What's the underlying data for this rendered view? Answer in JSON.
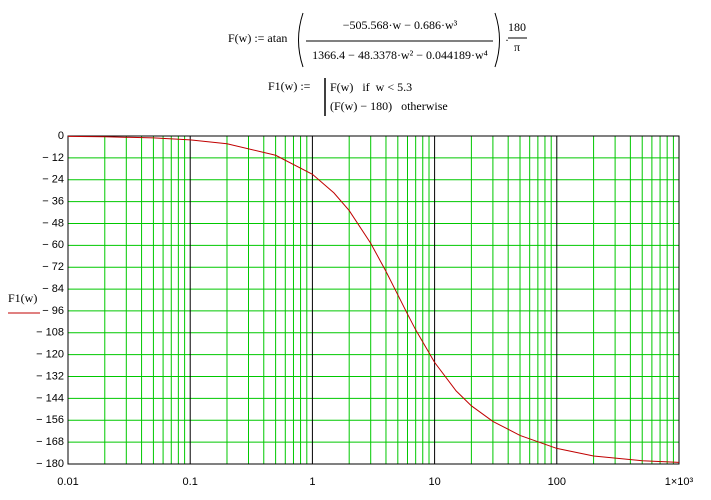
{
  "worksheet": {
    "def_f": "F(w) := atan",
    "numerator": "−505.568·w − 0.686·w³",
    "denominator": "1366.4 − 48.3378·w² − 0.044189·w⁴",
    "factor_num": "180",
    "factor_den": "π",
    "def_f1": "F1(w) :=",
    "case_1": "F(w)   if  w < 5.3",
    "case_2": "(F(w) − 180)   otherwise"
  },
  "chart_data": {
    "type": "line",
    "x": [
      0.01,
      0.02,
      0.05,
      0.1,
      0.2,
      0.5,
      1,
      1.5,
      2,
      3,
      4,
      5,
      6,
      7,
      10,
      15,
      20,
      30,
      50,
      100,
      200,
      500,
      1000
    ],
    "series": [
      {
        "name": "F1(w)",
        "color": "#c00000",
        "values": [
          -0.21,
          -0.42,
          -1.06,
          -2.12,
          -4.24,
          -10.58,
          -21.01,
          -31.21,
          -40.93,
          -58.86,
          -74.28,
          -87.14,
          -97.72,
          -106.36,
          -124.25,
          -139.88,
          -148.08,
          -156.62,
          -164.33,
          -171.45,
          -175.6,
          -178.22,
          -179.11
        ]
      }
    ],
    "xlim": [
      0.01,
      1000
    ],
    "xticks": [
      {
        "value": 0.01,
        "label": "0.01"
      },
      {
        "value": 0.1,
        "label": "0.1"
      },
      1,
      10,
      100,
      {
        "value": 1000,
        "label": "1×10³"
      }
    ],
    "x_log": true,
    "ylim": [
      -180,
      0
    ],
    "yticks": [
      0,
      {
        "value": -12,
        "label": "− 12"
      },
      {
        "value": -24,
        "label": "− 24"
      },
      {
        "value": -36,
        "label": "− 36"
      },
      {
        "value": -48,
        "label": "− 48"
      },
      {
        "value": -60,
        "label": "− 60"
      },
      {
        "value": -72,
        "label": "− 72"
      },
      {
        "value": -84,
        "label": "− 84"
      },
      {
        "value": -96,
        "label": "− 96"
      },
      {
        "value": -108,
        "label": "− 108"
      },
      {
        "value": -120,
        "label": "− 120"
      },
      {
        "value": -132,
        "label": "− 132"
      },
      {
        "value": -144,
        "label": "− 144"
      },
      {
        "value": -156,
        "label": "− 156"
      },
      {
        "value": -168,
        "label": "− 168"
      },
      {
        "value": -180,
        "label": "− 180"
      }
    ],
    "grid": true,
    "minor_grid": true,
    "grid_color": "#00c800",
    "major_grid_color": "#000000"
  }
}
